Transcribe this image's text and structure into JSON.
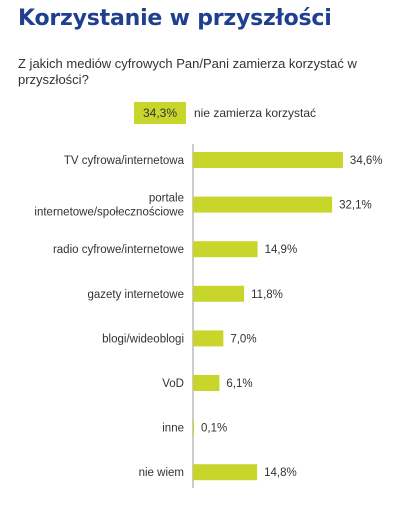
{
  "header": {
    "title": "Korzystanie w przyszłości",
    "question": "Z jakich mediów cyfrowych Pan/Pani zamierza korzystać w przyszłości?"
  },
  "callout": {
    "value": "34,3%",
    "label": "nie zamierza korzystać"
  },
  "colors": {
    "title": "#1f3f8f",
    "bar": "#c8d62b",
    "text": "#333333"
  },
  "chart_data": {
    "type": "bar",
    "orientation": "horizontal",
    "title": "",
    "xlabel": "",
    "ylabel": "",
    "grid": false,
    "xlim": [
      0,
      36
    ],
    "categories": [
      [
        "TV cyfrowa/internetowa"
      ],
      [
        "portale",
        "internetowe/społecznościowe"
      ],
      [
        "radio cyfrowe/internetowe"
      ],
      [
        "gazety internetowe"
      ],
      [
        "blogi/wideoblogi"
      ],
      [
        "VoD"
      ],
      [
        "inne"
      ],
      [
        "nie wiem"
      ]
    ],
    "values": [
      34.6,
      32.1,
      14.9,
      11.8,
      7.0,
      6.1,
      0.1,
      14.8
    ],
    "value_labels": [
      "34,6%",
      "32,1%",
      "14,9%",
      "11,8%",
      "7,0%",
      "6,1%",
      "0,1%",
      "14,8%"
    ]
  }
}
